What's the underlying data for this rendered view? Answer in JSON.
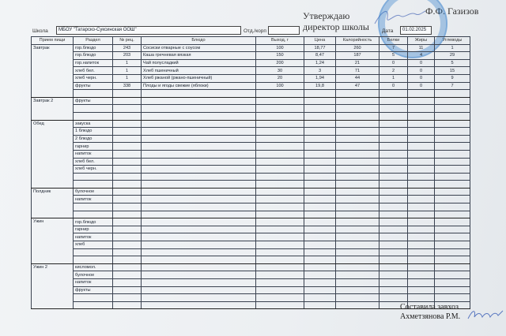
{
  "header": {
    "approve": "Утверждаю",
    "approve2": "директор школы",
    "director": "Ф.Ф. Газизов",
    "school_label": "Школа",
    "school": "МБОУ \"Татарско-Суксинская ООШ\"",
    "dept_label": "Отд./корп",
    "dept": "",
    "date_label": "Дата",
    "date": "01.02.2025"
  },
  "columns": [
    "Прием пищи",
    "Раздел",
    "№ рец.",
    "Блюдо",
    "Выход, г",
    "Цена",
    "Калорийность",
    "Белки",
    "Жиры",
    "Углеводы"
  ],
  "meals": [
    {
      "name": "Завтрак",
      "rows": [
        [
          "гор.блюдо",
          "243",
          "Сосиски отварные с соусом",
          "100",
          "18,77",
          "260",
          "7",
          "11",
          "1"
        ],
        [
          "гор.блюдо",
          "203",
          "Каша гречневая вязкая",
          "150",
          "8,47",
          "187",
          "5",
          "4",
          "29"
        ],
        [
          "гор.напиток",
          "1",
          "Чай полусладкий",
          "200",
          "1,24",
          "21",
          "0",
          "0",
          "5"
        ],
        [
          "хлеб бел.",
          "1",
          "Хлеб пшеничный",
          "30",
          "3",
          "71",
          "2",
          "0",
          "15"
        ],
        [
          "хлеб черн.",
          "1",
          "Хлеб ржаной (ржано-пшеничный)",
          "20",
          "1,94",
          "44",
          "1",
          "0",
          "9"
        ],
        [
          "фрукты",
          "338",
          "Плоды и ягоды свежие (яблоки)",
          "100",
          "19,8",
          "47",
          "0",
          "0",
          "7"
        ],
        []
      ]
    },
    {
      "name": "Завтрак 2",
      "rows": [
        [
          "фрукты"
        ],
        [],
        []
      ]
    },
    {
      "name": "Обед",
      "rows": [
        [
          "закуска"
        ],
        [
          "1 блюдо"
        ],
        [
          "2 блюдо"
        ],
        [
          "гарнир"
        ],
        [
          "напиток"
        ],
        [
          "хлеб бел."
        ],
        [
          "хлеб черн."
        ],
        [],
        []
      ]
    },
    {
      "name": "Полдник",
      "rows": [
        [
          "булочное"
        ],
        [
          "напиток"
        ],
        [],
        []
      ]
    },
    {
      "name": "Ужин",
      "rows": [
        [
          "гор.блюдо"
        ],
        [
          "гарнир"
        ],
        [
          "напиток"
        ],
        [
          "хлеб"
        ],
        [],
        []
      ]
    },
    {
      "name": "Ужин 2",
      "rows": [
        [
          "кисломол."
        ],
        [
          "булочное"
        ],
        [
          "напиток"
        ],
        [
          "фрукты"
        ],
        [],
        []
      ]
    }
  ],
  "footer": {
    "line1": "Составила завхоз",
    "line2": "Ахметзянова Р.М."
  },
  "colors": {
    "stamp": "#2878c8",
    "signature": "#5a78c0"
  }
}
